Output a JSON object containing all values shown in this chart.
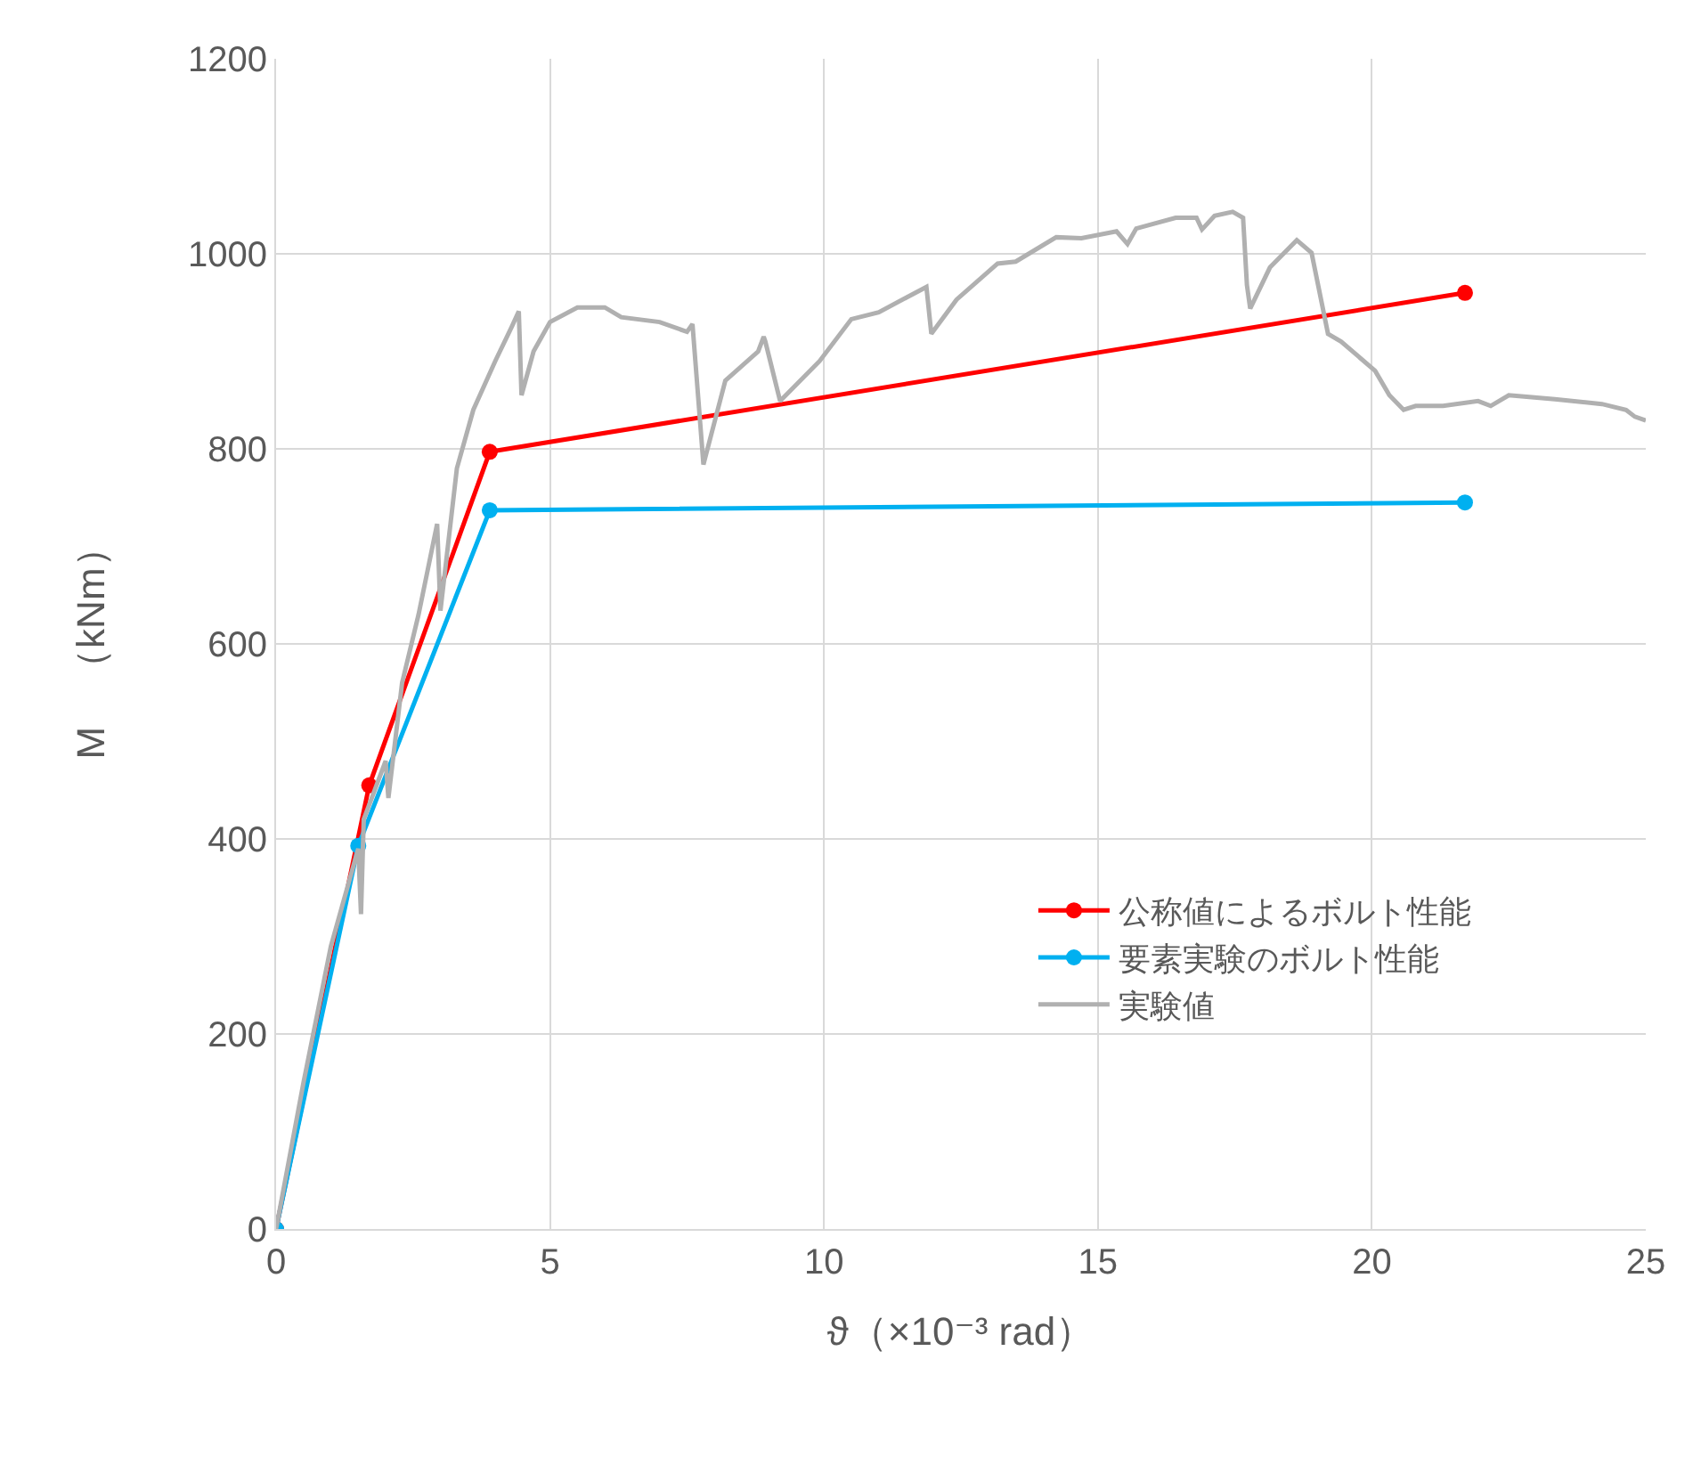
{
  "chart_data": {
    "type": "line",
    "xlabel": "ϑ（×10⁻³ rad）",
    "ylabel": "M　（kNm）",
    "xlim": [
      0,
      25
    ],
    "xticks": [
      0,
      5,
      10,
      15,
      20,
      25
    ],
    "ylim": [
      0,
      1200
    ],
    "yticks": [
      0,
      200,
      400,
      600,
      800,
      1000,
      1200
    ],
    "grid": true,
    "legend": "bottom right",
    "line_style": "solid",
    "series": [
      {
        "name": "公称値によるボルト性能",
        "color": "#ff0000",
        "marker": "circle",
        "x": [
          0,
          1.7,
          3.9,
          21.7
        ],
        "values": [
          0,
          455,
          797,
          960
        ]
      },
      {
        "name": "要素実験のボルト性能",
        "color": "#00b0f0",
        "marker": "circle",
        "x": [
          0,
          1.5,
          3.9,
          21.7
        ],
        "values": [
          0,
          393,
          737,
          745
        ]
      },
      {
        "name": "実験値",
        "color": "#b0b0b0",
        "marker": "none",
        "x": [
          0,
          0.5,
          1,
          1.5,
          1.55,
          1.6,
          2,
          2.05,
          2.3,
          2.6,
          2.94,
          3.0,
          3.3,
          3.6,
          4.0,
          4.3,
          4.43,
          4.48,
          4.7,
          5,
          5.5,
          6,
          6.3,
          7,
          7.5,
          7.6,
          7.8,
          8.2,
          8.8,
          8.9,
          8.93,
          9.2,
          9.92,
          10.5,
          11,
          11.5,
          11.87,
          11.96,
          12.42,
          13.17,
          13.5,
          14.24,
          14.7,
          15.34,
          15.54,
          15.7,
          16.42,
          16.8,
          16.9,
          17.13,
          17.46,
          17.65,
          17.72,
          17.78,
          18.14,
          18.63,
          18.9,
          19.2,
          19.44,
          20.06,
          20.32,
          20.58,
          20.8,
          21.3,
          21.94,
          22.17,
          22.5,
          22.92,
          23.34,
          24.2,
          24.64,
          24.8,
          25
        ],
        "values": [
          0,
          150,
          290,
          390,
          323,
          420,
          480,
          442,
          560,
          630,
          723,
          634,
          780,
          840,
          890,
          925,
          941,
          855,
          900,
          930,
          945,
          945,
          935,
          930,
          920,
          928,
          784,
          870,
          900,
          915,
          910,
          849,
          890,
          933,
          940,
          955,
          966,
          918,
          953,
          990,
          992,
          1017,
          1016,
          1023,
          1010,
          1026,
          1037,
          1037,
          1025,
          1039,
          1043,
          1037,
          968,
          944,
          986,
          1014,
          1001,
          918,
          910,
          880,
          855,
          840,
          844,
          844,
          849,
          844,
          855,
          853,
          851,
          846,
          840,
          833,
          829
        ]
      }
    ]
  }
}
